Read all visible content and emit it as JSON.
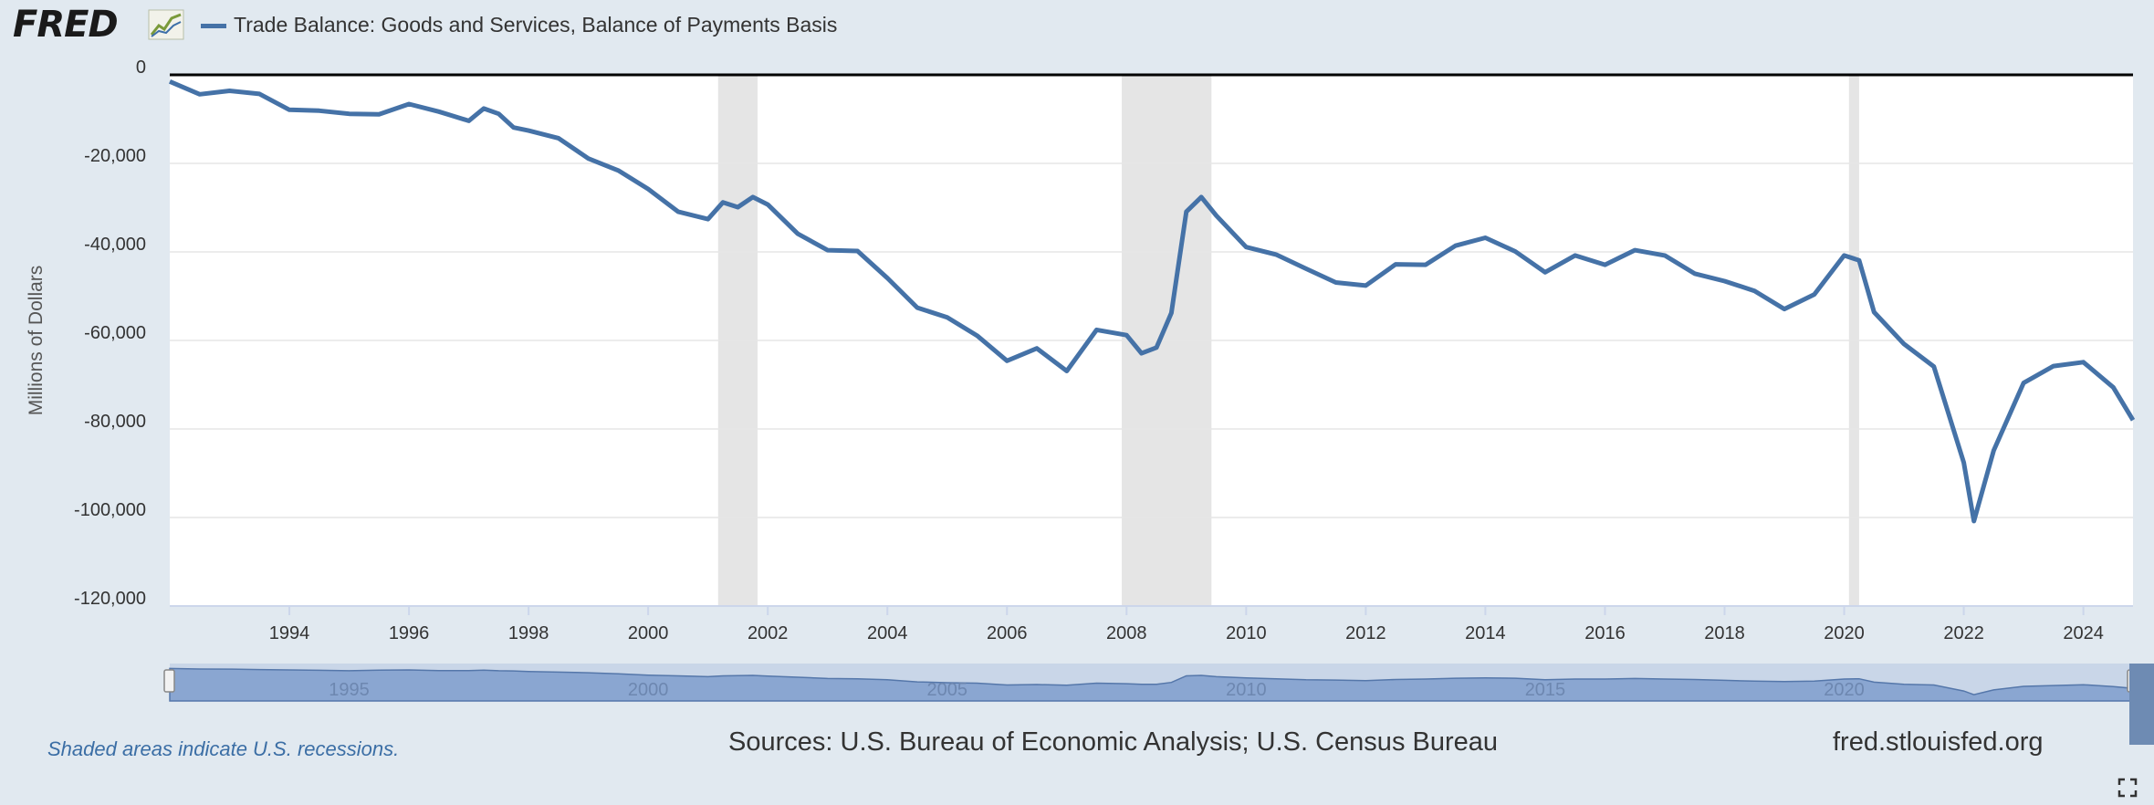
{
  "header": {
    "logo_text": "FRED",
    "series_label": "Trade Balance: Goods and Services, Balance of Payments Basis"
  },
  "footer": {
    "recession_note": "Shaded areas indicate U.S. recessions.",
    "sources": "Sources: U.S. Bureau of Economic Analysis; U.S. Census Bureau",
    "site": "fred.stlouisfed.org"
  },
  "colors": {
    "line": "#4572a7",
    "recession": "#e5e5e5",
    "background": "#e1e9f0",
    "navigator": "#8aa6d1"
  },
  "chart_data": {
    "type": "line",
    "ylabel": "Millions of Dollars",
    "ylim": [
      -120000,
      0
    ],
    "xlim": [
      1992.0,
      2024.83
    ],
    "yticks": [
      0,
      -20000,
      -40000,
      -60000,
      -80000,
      -100000,
      -120000
    ],
    "ytick_labels": [
      "0",
      "-20,000",
      "-40,000",
      "-60,000",
      "-80,000",
      "-100,000",
      "-120,000"
    ],
    "xticks": [
      "1994",
      "1996",
      "1998",
      "2000",
      "2002",
      "2004",
      "2006",
      "2008",
      "2010",
      "2012",
      "2014",
      "2016",
      "2018",
      "2020",
      "2022",
      "2024"
    ],
    "navigator_labels": [
      "1995",
      "2000",
      "2005",
      "2010",
      "2015",
      "2020"
    ],
    "recessions": [
      [
        2001.17,
        2001.83
      ],
      [
        2007.92,
        2009.42
      ],
      [
        2020.08,
        2020.25
      ]
    ],
    "series": [
      {
        "name": "Trade Balance: Goods and Services, Balance of Payments Basis",
        "x": [
          1992.0,
          1992.5,
          1993.0,
          1993.5,
          1994.0,
          1994.5,
          1995.0,
          1995.5,
          1996.0,
          1996.5,
          1997.0,
          1997.25,
          1997.5,
          1997.75,
          1998.0,
          1998.5,
          1999.0,
          1999.5,
          2000.0,
          2000.5,
          2001.0,
          2001.25,
          2001.5,
          2001.75,
          2002.0,
          2002.5,
          2003.0,
          2003.5,
          2004.0,
          2004.5,
          2005.0,
          2005.5,
          2006.0,
          2006.5,
          2007.0,
          2007.5,
          2008.0,
          2008.25,
          2008.5,
          2008.75,
          2009.0,
          2009.25,
          2009.5,
          2010.0,
          2010.5,
          2011.0,
          2011.5,
          2012.0,
          2012.5,
          2013.0,
          2013.5,
          2014.0,
          2014.5,
          2015.0,
          2015.5,
          2016.0,
          2016.5,
          2017.0,
          2017.5,
          2018.0,
          2018.5,
          2019.0,
          2019.5,
          2020.0,
          2020.25,
          2020.5,
          2021.0,
          2021.5,
          2022.0,
          2022.17,
          2022.5,
          2023.0,
          2023.5,
          2024.0,
          2024.5,
          2024.83
        ],
        "y": [
          -1500,
          -3500,
          -4000,
          -5500,
          -7000,
          -8500,
          -10000,
          -8000,
          -7000,
          -9500,
          -9500,
          -8000,
          -10000,
          -11000,
          -13000,
          -15500,
          -18000,
          -22000,
          -27000,
          -30000,
          -33000,
          -30000,
          -29000,
          -28000,
          -30500,
          -35000,
          -40000,
          -41000,
          -45000,
          -53000,
          -56000,
          -58000,
          -65000,
          -63000,
          -66000,
          -58000,
          -60000,
          -62000,
          -62000,
          -55000,
          -30000,
          -28000,
          -33000,
          -38000,
          -41000,
          -45000,
          -46000,
          -48000,
          -44000,
          -42000,
          -39000,
          -38000,
          -39000,
          -45000,
          -42000,
          -42000,
          -40000,
          -42000,
          -44000,
          -47000,
          -50000,
          -52000,
          -50000,
          -42000,
          -41000,
          -54000,
          -62000,
          -65000,
          -88000,
          -102000,
          -84000,
          -70000,
          -67000,
          -64000,
          -71000,
          -78000
        ]
      }
    ]
  }
}
